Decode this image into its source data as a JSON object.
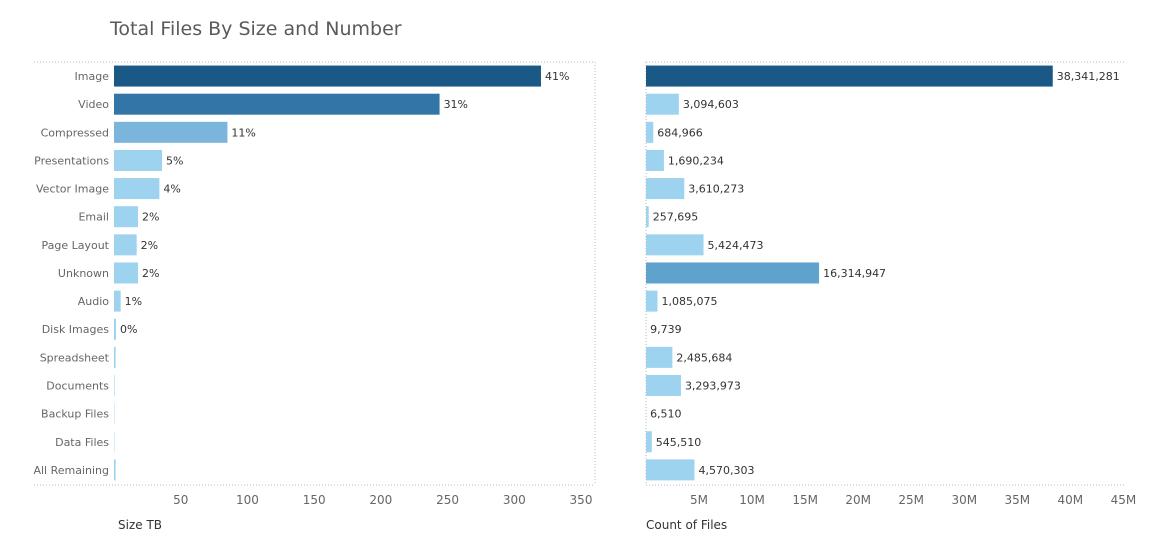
{
  "title": "Total Files By Size and Number",
  "chart_data": [
    {
      "type": "bar",
      "orientation": "horizontal",
      "categories": [
        "Image",
        "Video",
        "Compressed",
        "Presentations",
        "Vector Image",
        "Email",
        "Page Layout",
        "Unknown",
        "Audio",
        "Disk Images",
        "Spreadsheet",
        "Documents",
        "Backup Files",
        "Data Files",
        "All Remaining"
      ],
      "values": [
        320,
        244,
        85,
        36,
        34,
        18,
        17,
        18,
        5,
        1.5,
        1.2,
        0.4,
        0.3,
        0.3,
        1.2
      ],
      "data_labels": [
        "41%",
        "31%",
        "11%",
        "5%",
        "4%",
        "2%",
        "2%",
        "2%",
        "1%",
        "0%",
        "",
        "",
        "",
        "",
        ""
      ],
      "xlabel": "Size TB",
      "xlim": [
        0,
        350
      ],
      "xticks": [
        "50",
        "100",
        "150",
        "200",
        "250",
        "300",
        "350"
      ],
      "colors": [
        "#1a5886",
        "#3375a7",
        "#7bb5dc",
        "#9dd3ee",
        "#9dd3ee",
        "#9dd3ee",
        "#9dd3ee",
        "#9dd3ee",
        "#9dd3ee",
        "#9dd3ee",
        "#9dd3ee",
        "#9dd3ee",
        "#9dd3ee",
        "#9dd3ee",
        "#9dd3ee"
      ]
    },
    {
      "type": "bar",
      "orientation": "horizontal",
      "categories": [
        "Image",
        "Video",
        "Compressed",
        "Presentations",
        "Vector Image",
        "Email",
        "Page Layout",
        "Unknown",
        "Audio",
        "Disk Images",
        "Spreadsheet",
        "Documents",
        "Backup Files",
        "Data Files",
        "All Remaining"
      ],
      "values": [
        38341281,
        3094603,
        684966,
        1690234,
        3610273,
        257695,
        5424473,
        16314947,
        1085075,
        9739,
        2485684,
        3293973,
        6510,
        545510,
        4570303
      ],
      "data_labels": [
        "38,341,281",
        "3,094,603",
        "684,966",
        "1,690,234",
        "3,610,273",
        "257,695",
        "5,424,473",
        "16,314,947",
        "1,085,075",
        "9,739",
        "2,485,684",
        "3,293,973",
        "6,510",
        "545,510",
        "4,570,303"
      ],
      "xlabel": "Count of Files",
      "xlim": [
        0,
        46000000
      ],
      "xtick_values": [
        5000000,
        10000000,
        15000000,
        20000000,
        25000000,
        30000000,
        35000000,
        40000000,
        45000000
      ],
      "xticks": [
        "5M",
        "10M",
        "15M",
        "20M",
        "25M",
        "30M",
        "35M",
        "40M",
        "45M"
      ],
      "colors": [
        "#1a5886",
        "#9dd3ee",
        "#9dd3ee",
        "#9dd3ee",
        "#9dd3ee",
        "#9dd3ee",
        "#9dd3ee",
        "#5fa2cd",
        "#9dd3ee",
        "#9dd3ee",
        "#9dd3ee",
        "#9dd3ee",
        "#9dd3ee",
        "#9dd3ee",
        "#9dd3ee"
      ]
    }
  ]
}
